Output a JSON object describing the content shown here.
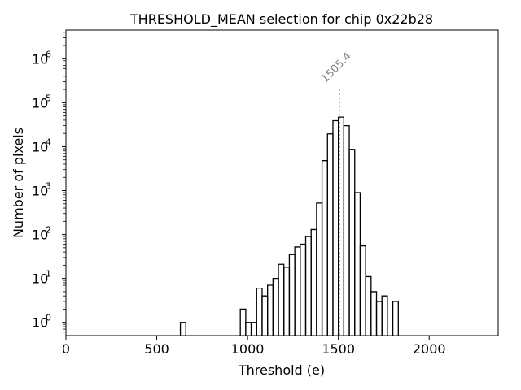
{
  "chart_data": {
    "type": "histogram",
    "title": "THRESHOLD_MEAN selection for chip 0x22b28",
    "xlabel": "Threshold (e)",
    "ylabel": "Number of pixels",
    "xlim": [
      0,
      2380
    ],
    "ylim": [
      0.5,
      4500000
    ],
    "yscale": "log",
    "x_ticks": [
      0,
      500,
      1000,
      1500,
      2000
    ],
    "x_tick_labels": [
      "0",
      "500",
      "1000",
      "1500",
      "2000"
    ],
    "y_ticks": [
      1,
      10,
      100,
      1000,
      10000,
      100000,
      1000000
    ],
    "y_tick_labels": [
      {
        "base": "10",
        "exp": "0"
      },
      {
        "base": "10",
        "exp": "1"
      },
      {
        "base": "10",
        "exp": "2"
      },
      {
        "base": "10",
        "exp": "3"
      },
      {
        "base": "10",
        "exp": "4"
      },
      {
        "base": "10",
        "exp": "5"
      },
      {
        "base": "10",
        "exp": "6"
      }
    ],
    "bin_width": 30,
    "bins": [
      {
        "x0": 630,
        "count": 1
      },
      {
        "x0": 960,
        "count": 2
      },
      {
        "x0": 990,
        "count": 1
      },
      {
        "x0": 1020,
        "count": 1
      },
      {
        "x0": 1050,
        "count": 6
      },
      {
        "x0": 1080,
        "count": 4
      },
      {
        "x0": 1110,
        "count": 7
      },
      {
        "x0": 1140,
        "count": 10
      },
      {
        "x0": 1170,
        "count": 21
      },
      {
        "x0": 1200,
        "count": 18
      },
      {
        "x0": 1230,
        "count": 35
      },
      {
        "x0": 1260,
        "count": 52
      },
      {
        "x0": 1290,
        "count": 60
      },
      {
        "x0": 1320,
        "count": 90
      },
      {
        "x0": 1350,
        "count": 130
      },
      {
        "x0": 1380,
        "count": 520
      },
      {
        "x0": 1410,
        "count": 4800
      },
      {
        "x0": 1440,
        "count": 19500
      },
      {
        "x0": 1470,
        "count": 39000
      },
      {
        "x0": 1500,
        "count": 47000
      },
      {
        "x0": 1530,
        "count": 30000
      },
      {
        "x0": 1560,
        "count": 8700
      },
      {
        "x0": 1590,
        "count": 900
      },
      {
        "x0": 1620,
        "count": 55
      },
      {
        "x0": 1650,
        "count": 11
      },
      {
        "x0": 1680,
        "count": 5
      },
      {
        "x0": 1710,
        "count": 3
      },
      {
        "x0": 1740,
        "count": 4
      },
      {
        "x0": 1800,
        "count": 3
      }
    ],
    "threshold_marker": {
      "x": 1505.4,
      "label": "1505.4",
      "top": 200000
    },
    "colors": {
      "histogram": "#000000",
      "marker": "#808080",
      "annotation": "#808080"
    }
  }
}
